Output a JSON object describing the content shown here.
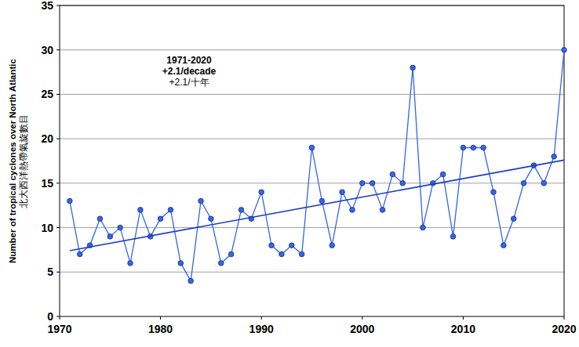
{
  "chart_data": {
    "type": "line",
    "y_label": [
      "Number of tropical cyclones over North Atlantic",
      "北大西洋熱帶氣旋數目"
    ],
    "annotations": [
      "1971-2020",
      "+2.1/decade",
      "+2.1/十年"
    ],
    "x": [
      1971,
      1972,
      1973,
      1974,
      1975,
      1976,
      1977,
      1978,
      1979,
      1980,
      1981,
      1982,
      1983,
      1984,
      1985,
      1986,
      1987,
      1988,
      1989,
      1990,
      1991,
      1992,
      1993,
      1994,
      1995,
      1996,
      1997,
      1998,
      1999,
      2000,
      2001,
      2002,
      2003,
      2004,
      2005,
      2006,
      2007,
      2008,
      2009,
      2010,
      2011,
      2012,
      2013,
      2014,
      2015,
      2016,
      2017,
      2018,
      2019,
      2020
    ],
    "series": [
      {
        "color": "#3366ee",
        "marker": "circle",
        "line_style": "solid",
        "values": [
          13,
          7,
          8,
          11,
          9,
          10,
          6,
          12,
          9,
          11,
          12,
          6,
          4,
          13,
          11,
          6,
          7,
          12,
          11,
          14,
          8,
          7,
          8,
          7,
          19,
          13,
          8,
          14,
          12,
          15,
          15,
          12,
          16,
          15,
          28,
          10,
          15,
          16,
          9,
          19,
          19,
          19,
          14,
          8,
          11,
          15,
          17,
          15,
          18,
          30
        ]
      }
    ],
    "trend": {
      "x": [
        1971,
        2020
      ],
      "values": [
        7.4,
        17.6
      ],
      "color": "#1a3ccc"
    },
    "xlim": [
      1970,
      2020
    ],
    "ylim": [
      0,
      35
    ],
    "xticks": [
      1970,
      1980,
      1990,
      2000,
      2010,
      2020
    ],
    "yticks": [
      0,
      5,
      10,
      15,
      20,
      25,
      30,
      35
    ],
    "grid": true
  }
}
